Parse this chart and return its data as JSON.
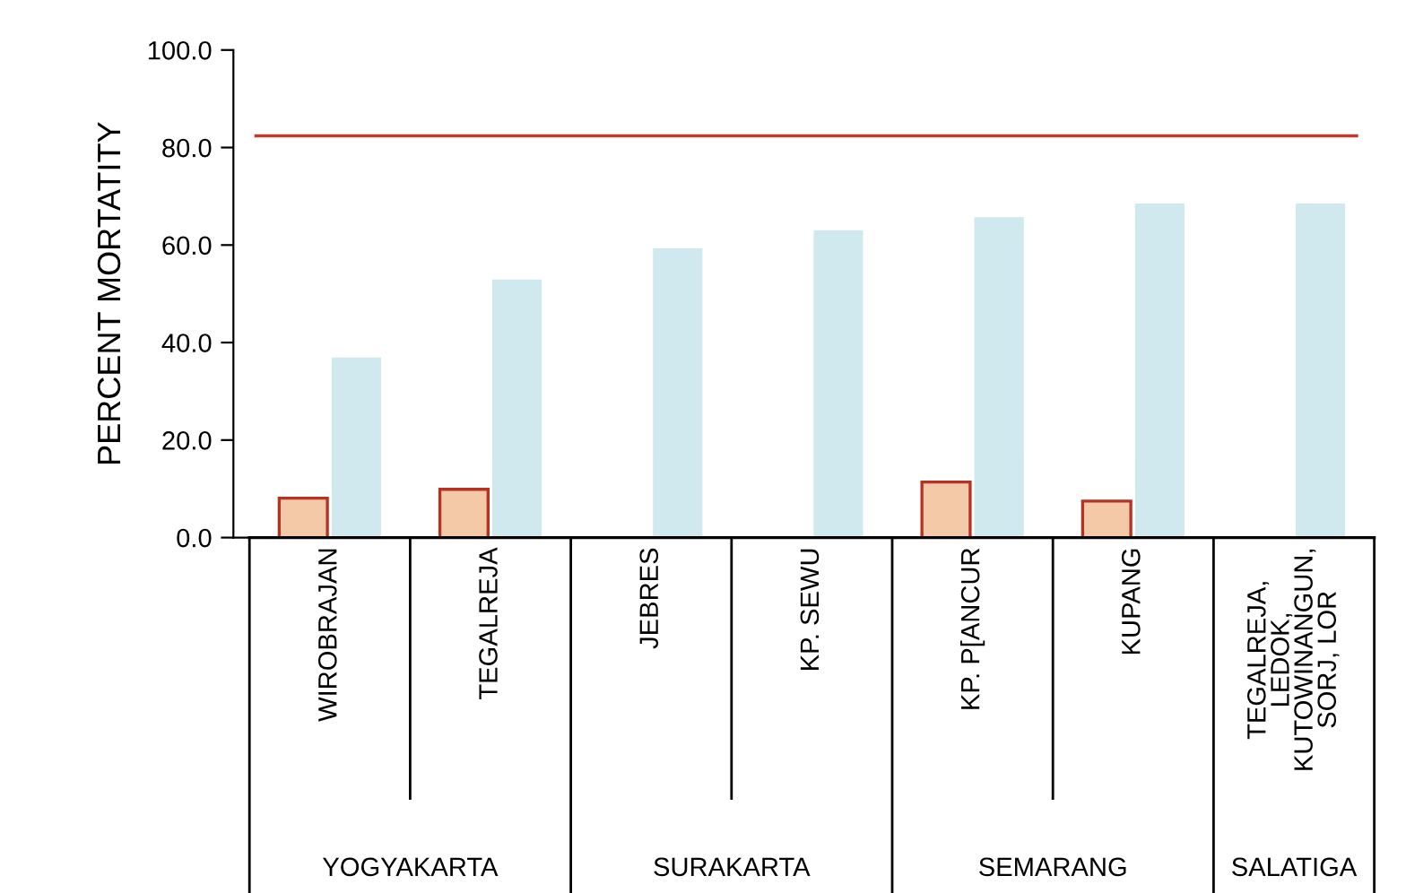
{
  "chart_data": {
    "type": "bar",
    "ylabel": "PERCENT MORTATITY",
    "categories": [
      "WIROBRAJAN",
      "TEGALREJA",
      "JEBRES",
      "KP. SEWU",
      "KP. P[ANCUR",
      "KUPANG",
      "TEGALREJA,\nLEDOK,\nKUTOWINANGUN,\nSORJ, LOR"
    ],
    "series": [
      {
        "color": "#f3c9a8",
        "values": [
          8.1,
          9.9,
          null,
          null,
          11.4,
          7.5,
          null
        ]
      },
      {
        "color": "#cfe9ee",
        "values": [
          36.8,
          52.8,
          59.2,
          62.9,
          65.6,
          68.4,
          68.4
        ]
      }
    ],
    "ylim": [
      0,
      100
    ],
    "yticks": [
      {
        "value": 0,
        "label": "0.0"
      },
      {
        "value": 20,
        "label": "20.0"
      },
      {
        "value": 40,
        "label": "40.0"
      },
      {
        "value": 60,
        "label": "60.0"
      },
      {
        "value": 80,
        "label": "80.0"
      },
      {
        "value": 100,
        "label": "100.0"
      }
    ],
    "ref_lines": [
      {
        "axis": "y",
        "value": 82.4,
        "color": "#c0392b"
      }
    ],
    "annotations": [
      "YOGYAKARTA",
      "SURAKARTA",
      "SEMARANG",
      "SALATIGA"
    ],
    "grid": false
  }
}
